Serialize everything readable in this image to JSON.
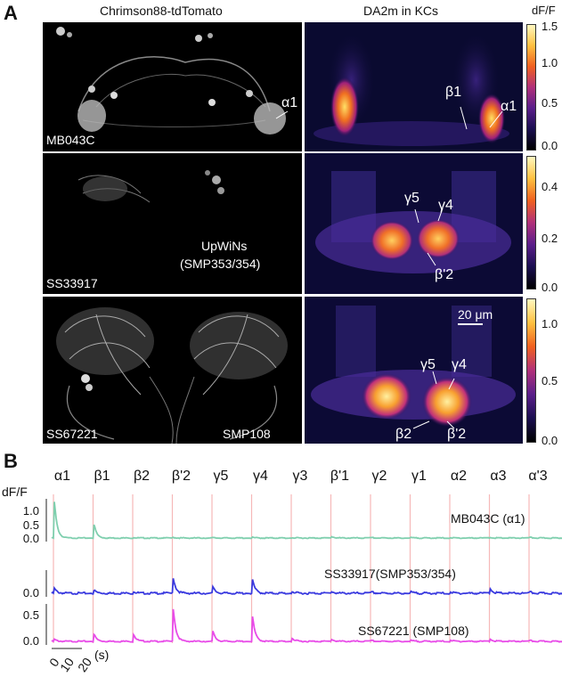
{
  "panel_a": {
    "letter": "A",
    "left_header": "Chrimson88-tdTomato",
    "right_header": "DA2m in KCs",
    "colorbar_unit": "dF/F",
    "rows": [
      {
        "driver": "MB043C",
        "left_labels": [
          "α1"
        ],
        "right_labels": [
          "β1",
          "α1"
        ],
        "colorbar_ticks": [
          "1.5",
          "1.0",
          "0.5",
          "0.0"
        ]
      },
      {
        "driver": "SS33917",
        "left_labels": [
          "UpWiNs",
          "(SMP353/354)"
        ],
        "right_labels": [
          "γ5",
          "γ4",
          "β'2"
        ],
        "colorbar_ticks": [
          "0.4",
          "0.2",
          "0.0"
        ]
      },
      {
        "driver": "SS67221",
        "left_labels": [
          "SMP108"
        ],
        "right_labels": [
          "γ5",
          "γ4",
          "β2",
          "β'2"
        ],
        "scalebar": "20 μm",
        "colorbar_ticks": [
          "1.0",
          "0.5",
          "0.0"
        ]
      }
    ]
  },
  "panel_b": {
    "letter": "B",
    "ylabel": "dF/F",
    "xticks": [
      "0",
      "10",
      "20"
    ],
    "xunit": "(s)",
    "regions": [
      "α1",
      "β1",
      "β2",
      "β'2",
      "γ5",
      "γ4",
      "γ3",
      "β'1",
      "γ2",
      "γ1",
      "α2",
      "α3",
      "α'3"
    ],
    "trace_labels": [
      "MB043C (α1)",
      "SS33917(SMP353/354)",
      "SS67221 (SMP108)"
    ]
  },
  "chart_data": [
    {
      "type": "line",
      "name": "MB043C (α1)",
      "color": "#7fcfae",
      "categories": [
        "α1",
        "β1",
        "β2",
        "β'2",
        "γ5",
        "γ4",
        "γ3",
        "β'1",
        "γ2",
        "γ1",
        "α2",
        "α3",
        "α'3"
      ],
      "peak_values": [
        1.2,
        0.45,
        0.02,
        0.02,
        0.01,
        0.02,
        0.01,
        0.05,
        0.01,
        0.01,
        0.01,
        0.02,
        0.02
      ],
      "yticks": [
        "0.0",
        "0.5",
        "1.0"
      ],
      "ylim": [
        0,
        1.2
      ]
    },
    {
      "type": "line",
      "name": "SS33917(SMP353/354)",
      "color": "#3a3adf",
      "categories": [
        "α1",
        "β1",
        "β2",
        "β'2",
        "γ5",
        "γ4",
        "γ3",
        "β'1",
        "γ2",
        "γ1",
        "α2",
        "α3",
        "α'3"
      ],
      "peak_values": [
        0.08,
        0.05,
        0.03,
        0.25,
        0.1,
        0.22,
        0.03,
        0.03,
        0.02,
        0.02,
        0.02,
        0.08,
        0.02
      ],
      "yticks": [
        "0.0"
      ],
      "ylim": [
        -0.05,
        0.3
      ]
    },
    {
      "type": "line",
      "name": "SS67221 (SMP108)",
      "color": "#e84be8",
      "categories": [
        "α1",
        "β1",
        "β2",
        "β'2",
        "γ5",
        "γ4",
        "γ3",
        "β'1",
        "γ2",
        "γ1",
        "α2",
        "α3",
        "α'3"
      ],
      "peak_values": [
        0.05,
        0.18,
        0.18,
        0.82,
        0.25,
        0.62,
        0.08,
        0.05,
        0.02,
        0.02,
        0.03,
        0.06,
        0.02
      ],
      "yticks": [
        "0.0",
        "0.5"
      ],
      "ylim": [
        0,
        0.85
      ]
    }
  ]
}
